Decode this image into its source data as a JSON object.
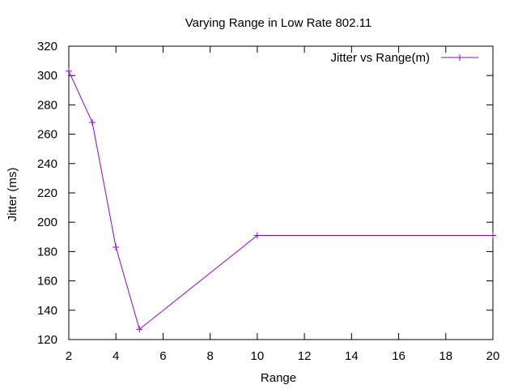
{
  "chart_data": {
    "type": "line",
    "title": "Varying Range in Low Rate 802.11",
    "xlabel": "Range",
    "ylabel": "Jitter (ms)",
    "xlim": [
      2,
      20
    ],
    "ylim": [
      120,
      320
    ],
    "xticks": [
      2,
      4,
      6,
      8,
      10,
      12,
      14,
      16,
      18,
      20
    ],
    "yticks": [
      120,
      140,
      160,
      180,
      200,
      220,
      240,
      260,
      280,
      300,
      320
    ],
    "grid": false,
    "legend_position": "top-right",
    "series": [
      {
        "name": "Jitter vs Range(m)",
        "color": "#9400d3",
        "marker": "plus",
        "x": [
          2,
          3,
          4,
          5,
          10,
          20
        ],
        "y": [
          303,
          268,
          183,
          127,
          191,
          191
        ]
      }
    ]
  }
}
